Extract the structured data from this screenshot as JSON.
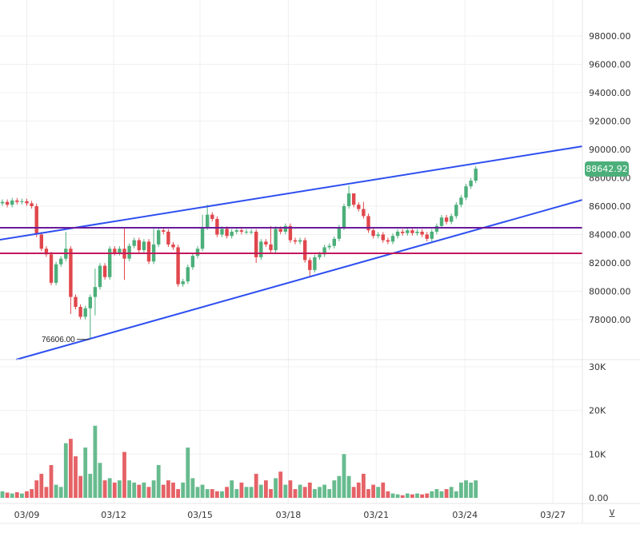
{
  "chart_data": {
    "type": "candlestick",
    "interval": "4h",
    "price_axis": {
      "min": 76000,
      "max": 99000,
      "ticks": [
        78000,
        80000,
        82000,
        84000,
        86000,
        88000,
        90000,
        92000,
        94000,
        96000,
        98000
      ],
      "tick_labels": [
        "78000.00",
        "80000.00",
        "82000.00",
        "84000.00",
        "86000.00",
        "88000.00",
        "90000.00",
        "92000.00",
        "94000.00",
        "96000.00",
        "98000.00"
      ]
    },
    "volume_axis": {
      "min": 0,
      "max": 30000,
      "ticks": [
        0,
        10000,
        20000,
        30000
      ],
      "tick_labels": [
        "0.00",
        "10K",
        "20K",
        "30K"
      ]
    },
    "time_axis": {
      "labels": [
        "03/09",
        "03/12",
        "03/15",
        "03/18",
        "03/21",
        "03/24",
        "03/27"
      ],
      "label_bar_index": [
        5,
        22.8,
        40.5,
        58.6,
        76.6,
        94.8,
        112.8
      ]
    },
    "first_open": 86200,
    "closes": [
      86300,
      86100,
      86400,
      86300,
      86350,
      86200,
      86000,
      84000,
      83000,
      82600,
      80600,
      81900,
      82300,
      83000,
      79600,
      78900,
      78200,
      78800,
      79600,
      80300,
      81800,
      81000,
      83000,
      82700,
      83000,
      82300,
      83200,
      83600,
      82900,
      83500,
      82100,
      83300,
      84300,
      84200,
      83300,
      83100,
      80500,
      80700,
      81700,
      82500,
      83000,
      84500,
      85400,
      85100,
      84000,
      84400,
      83900,
      84200,
      84300,
      84200,
      84200,
      84200,
      82400,
      83500,
      83300,
      82900,
      84400,
      84200,
      84600,
      83600,
      83500,
      83600,
      82200,
      81500,
      82400,
      82600,
      83100,
      83200,
      83700,
      84500,
      86000,
      86900,
      86100,
      85800,
      85300,
      84300,
      83900,
      84000,
      83600,
      83500,
      83900,
      84200,
      84100,
      84300,
      84100,
      84200,
      84000,
      83700,
      84200,
      84600,
      85200,
      84900,
      85300,
      86100,
      86600,
      87400,
      87800,
      88642.92
    ],
    "wick_overrides": {
      "13": {
        "h": 84200
      },
      "14": {
        "l": 78400
      },
      "18": {
        "l": 76606
      },
      "19": {
        "h": 81600,
        "l": 78300
      },
      "25": {
        "h": 84500,
        "l": 80800
      },
      "31": {
        "h": 84400
      },
      "41": {
        "h": 85400
      },
      "42": {
        "h": 86100
      },
      "52": {
        "l": 82000
      },
      "55": {
        "h": 84600
      },
      "63": {
        "l": 81000
      },
      "71": {
        "h": 87453
      },
      "72": {
        "h": 86600
      },
      "74": {
        "h": 86300
      }
    },
    "volumes": [
      1500,
      1200,
      1000,
      1300,
      1000,
      1500,
      2000,
      4000,
      5500,
      2500,
      7500,
      3000,
      2500,
      12500,
      13500,
      9500,
      5000,
      11500,
      5500,
      16500,
      8000,
      4000,
      4500,
      3500,
      4000,
      10500,
      4000,
      3500,
      3000,
      3500,
      2500,
      4000,
      7500,
      3000,
      4000,
      3500,
      2000,
      3500,
      11500,
      4500,
      2500,
      3000,
      2000,
      2000,
      1500,
      1500,
      2500,
      4000,
      2000,
      3500,
      2500,
      2500,
      5500,
      3000,
      4000,
      2000,
      4500,
      6000,
      3000,
      4000,
      2000,
      3000,
      2500,
      3500,
      2000,
      2500,
      3000,
      2000,
      4000,
      5000,
      10000,
      5000,
      2500,
      3500,
      5500,
      2000,
      3000,
      2500,
      3500,
      1500,
      1000,
      800,
      600,
      1000,
      800,
      1000,
      800,
      1000,
      1500,
      2000,
      1500,
      2000,
      2500,
      1500,
      3500,
      4000,
      3500,
      4000
    ],
    "lines": [
      {
        "name": "upper-channel",
        "color": "#2e4ff0",
        "from": [
          -0.5,
          83634
        ],
        "to": [
          118.9,
          90225
        ]
      },
      {
        "name": "lower-channel",
        "color": "#2e4ff0",
        "from": [
          2.8,
          75183
        ],
        "to": [
          118.9,
          86450
        ]
      },
      {
        "name": "resistance-purple",
        "color": "#6a1b9a",
        "price": 84479
      },
      {
        "name": "support-red",
        "color": "#c2185b",
        "price": 82676
      }
    ],
    "low_marker": {
      "label": "76606.00",
      "bar_index": 18,
      "price": 76606
    },
    "last_price": "88642.92",
    "colors": {
      "up": "#4caf7a",
      "down": "#e0474c",
      "grid": "#f0f0f0"
    }
  },
  "controls": {
    "auto_scale_icon": "⊻"
  }
}
